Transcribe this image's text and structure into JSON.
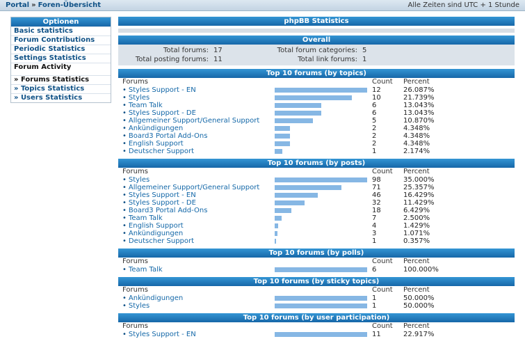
{
  "topbar": {
    "breadcrumb": [
      "Portal",
      "Foren-Übersicht"
    ],
    "separator": "»",
    "timezone": "Alle Zeiten sind UTC + 1 Stunde"
  },
  "sidebar": {
    "title": "Optionen",
    "items": [
      {
        "label": "Basic statistics",
        "type": "link"
      },
      {
        "label": "Forum Contributions",
        "type": "link"
      },
      {
        "label": "Periodic Statistics",
        "type": "link"
      },
      {
        "label": "Settings Statistics",
        "type": "link"
      },
      {
        "label": "Forum Activity",
        "type": "section"
      },
      {
        "label": "» Forums Statistics",
        "type": "current"
      },
      {
        "label": "» Topics Statistics",
        "type": "link"
      },
      {
        "label": "» Users Statistics",
        "type": "link"
      }
    ]
  },
  "main": {
    "page_title": "phpBB Statistics",
    "overall": {
      "title": "Overall",
      "stats": [
        {
          "label": "Total forums:",
          "value": "17"
        },
        {
          "label": "Total forum categories:",
          "value": "5"
        },
        {
          "label": "Total posting forums:",
          "value": "11"
        },
        {
          "label": "Total link forums:",
          "value": "1"
        }
      ]
    },
    "columns": {
      "forums": "Forums",
      "count": "Count",
      "percent": "Percent"
    },
    "bullet": "•",
    "sections": [
      {
        "title": "Top 10 forums (by topics)",
        "rows": [
          {
            "name": "Styles Support - EN",
            "count": 12,
            "percent": "26.087%"
          },
          {
            "name": "Styles",
            "count": 10,
            "percent": "21.739%"
          },
          {
            "name": "Team Talk",
            "count": 6,
            "percent": "13.043%"
          },
          {
            "name": "Styles Support - DE",
            "count": 6,
            "percent": "13.043%"
          },
          {
            "name": "Allgemeiner Support/General Support",
            "count": 5,
            "percent": "10.870%"
          },
          {
            "name": "Ankündigungen",
            "count": 2,
            "percent": "4.348%"
          },
          {
            "name": "Board3 Portal Add-Ons",
            "count": 2,
            "percent": "4.348%"
          },
          {
            "name": "English Support",
            "count": 2,
            "percent": "4.348%"
          },
          {
            "name": "Deutscher Support",
            "count": 1,
            "percent": "2.174%"
          }
        ]
      },
      {
        "title": "Top 10 forums (by posts)",
        "rows": [
          {
            "name": "Styles",
            "count": 98,
            "percent": "35.000%"
          },
          {
            "name": "Allgemeiner Support/General Support",
            "count": 71,
            "percent": "25.357%"
          },
          {
            "name": "Styles Support - EN",
            "count": 46,
            "percent": "16.429%"
          },
          {
            "name": "Styles Support - DE",
            "count": 32,
            "percent": "11.429%"
          },
          {
            "name": "Board3 Portal Add-Ons",
            "count": 18,
            "percent": "6.429%"
          },
          {
            "name": "Team Talk",
            "count": 7,
            "percent": "2.500%"
          },
          {
            "name": "English Support",
            "count": 4,
            "percent": "1.429%"
          },
          {
            "name": "Ankündigungen",
            "count": 3,
            "percent": "1.071%"
          },
          {
            "name": "Deutscher Support",
            "count": 1,
            "percent": "0.357%"
          }
        ]
      },
      {
        "title": "Top 10 forums (by polls)",
        "rows": [
          {
            "name": "Team Talk",
            "count": 6,
            "percent": "100.000%"
          }
        ]
      },
      {
        "title": "Top 10 forums (by sticky topics)",
        "rows": [
          {
            "name": "Ankündigungen",
            "count": 1,
            "percent": "50.000%"
          },
          {
            "name": "Styles",
            "count": 1,
            "percent": "50.000%"
          }
        ]
      },
      {
        "title": "Top 10 forums (by user participation)",
        "rows": [
          {
            "name": "Styles Support - EN",
            "count": 11,
            "percent": "22.917%"
          }
        ]
      }
    ]
  },
  "colors": {
    "header_bar_top": "#3395d4",
    "header_bar_bottom": "#1767a8",
    "bar_fill": "#86b7e4",
    "link": "#0f5186",
    "panel_bg": "#dce3ea"
  }
}
